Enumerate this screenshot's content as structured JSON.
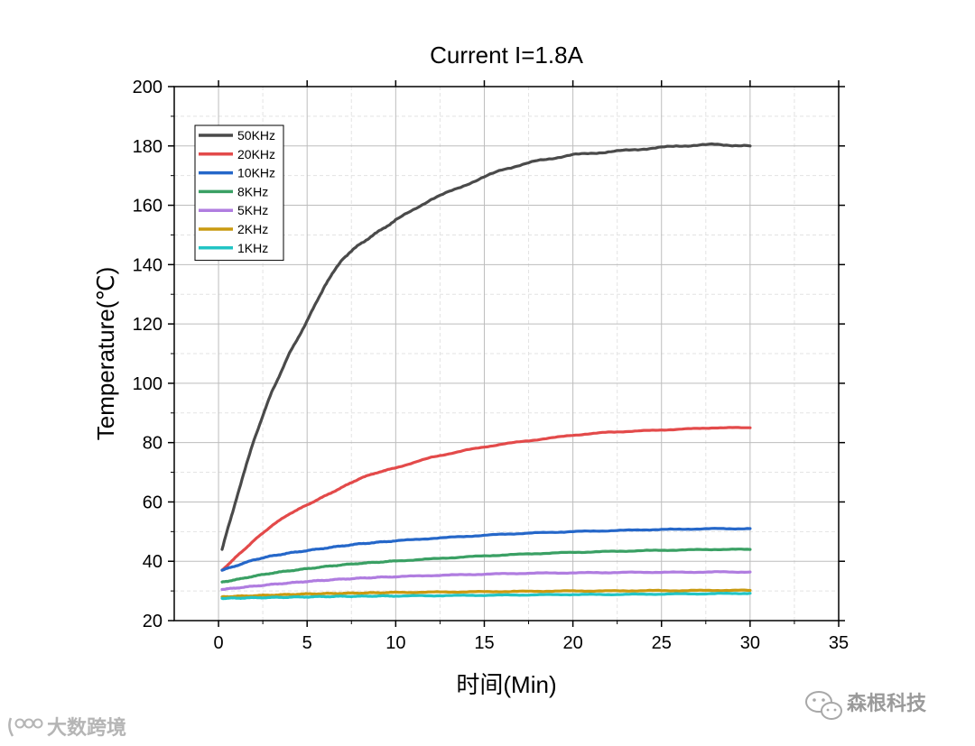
{
  "chart_data": {
    "type": "line",
    "title": "Current I=1.8A",
    "xlabel": "时间(Min)",
    "ylabel": "Temperature(℃)",
    "xlim": [
      -2.5,
      35
    ],
    "ylim": [
      20,
      200
    ],
    "x_ticks": [
      "0",
      "5",
      "10",
      "15",
      "20",
      "25",
      "30",
      "35"
    ],
    "y_ticks": [
      "20",
      "40",
      "60",
      "80",
      "100",
      "120",
      "140",
      "160",
      "180",
      "200"
    ],
    "grid": true,
    "legend_position": "top-left",
    "x": [
      0.2,
      1,
      2,
      3,
      4,
      5,
      6,
      7,
      8,
      9,
      10,
      12,
      14,
      16,
      18,
      20,
      22,
      24,
      26,
      28,
      30
    ],
    "series": [
      {
        "name": "50KHz",
        "color": "#4a4a4a",
        "values": [
          44,
          61,
          81,
          97,
          110,
          121,
          133,
          142,
          147,
          151,
          155,
          162,
          167,
          172,
          175,
          177,
          178,
          179,
          180,
          180.5,
          180
        ]
      },
      {
        "name": "20KHz",
        "color": "#e34a4a",
        "values": [
          37,
          41.5,
          47,
          52,
          56,
          59,
          62,
          65,
          68,
          70,
          71.5,
          75,
          77.5,
          79.5,
          81,
          82.5,
          83.5,
          84,
          84.5,
          85,
          85
        ]
      },
      {
        "name": "10KHz",
        "color": "#2567c9",
        "values": [
          37,
          38.5,
          40.5,
          41.8,
          42.8,
          43.6,
          44.4,
          45.2,
          45.9,
          46.4,
          46.9,
          47.7,
          48.4,
          49.1,
          49.6,
          50,
          50.3,
          50.6,
          50.8,
          51,
          51
        ]
      },
      {
        "name": "8KHz",
        "color": "#3aa064",
        "values": [
          33,
          33.8,
          35,
          36,
          36.8,
          37.5,
          38.2,
          38.8,
          39.3,
          39.7,
          40.1,
          40.8,
          41.5,
          42.1,
          42.6,
          43,
          43.3,
          43.6,
          43.8,
          44,
          44
        ]
      },
      {
        "name": "5KHz",
        "color": "#b07de0",
        "values": [
          30.5,
          31,
          31.6,
          32.2,
          32.7,
          33.2,
          33.6,
          34,
          34.3,
          34.6,
          34.8,
          35.2,
          35.5,
          35.8,
          36,
          36.1,
          36.2,
          36.3,
          36.3,
          36.4,
          36.4
        ]
      },
      {
        "name": "2KHz",
        "color": "#c99a10",
        "values": [
          28,
          28.2,
          28.4,
          28.6,
          28.8,
          29,
          29.1,
          29.2,
          29.3,
          29.4,
          29.5,
          29.6,
          29.7,
          29.8,
          29.9,
          30,
          30,
          30.1,
          30.1,
          30.2,
          30.2
        ]
      },
      {
        "name": "1KHz",
        "color": "#22c4c4",
        "values": [
          27.5,
          27.6,
          27.7,
          27.8,
          27.9,
          28,
          28.1,
          28.2,
          28.2,
          28.3,
          28.3,
          28.4,
          28.5,
          28.6,
          28.7,
          28.8,
          28.8,
          28.9,
          29,
          29.1,
          29.2
        ]
      }
    ]
  },
  "watermarks": {
    "left": "大数跨境",
    "right": "森根科技"
  }
}
